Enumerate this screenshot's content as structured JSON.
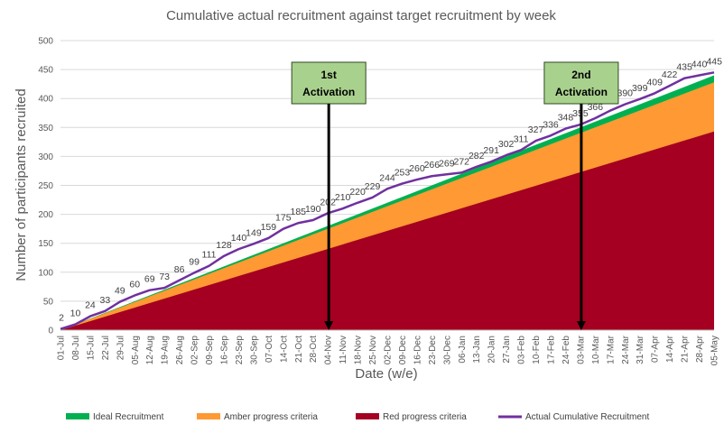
{
  "chart_data": {
    "type": "area",
    "title": "Cumulative actual recruitment against target recruitment by week",
    "xlabel": "Date (w/e)",
    "ylabel": "Number of participants recruited",
    "ylim": [
      0,
      500
    ],
    "yticks": [
      0,
      50,
      100,
      150,
      200,
      250,
      300,
      350,
      400,
      450,
      500
    ],
    "categories": [
      "01-Jul",
      "08-Jul",
      "15-Jul",
      "22-Jul",
      "29-Jul",
      "05-Aug",
      "12-Aug",
      "19-Aug",
      "26-Aug",
      "02-Sep",
      "09-Sep",
      "16-Sep",
      "23-Sep",
      "30-Sep",
      "07-Oct",
      "14-Oct",
      "21-Oct",
      "28-Oct",
      "04-Nov",
      "11-Nov",
      "18-Nov",
      "25-Nov",
      "02-Dec",
      "09-Dec",
      "16-Dec",
      "23-Dec",
      "30-Dec",
      "06-Jan",
      "13-Jan",
      "20-Jan",
      "27-Jan",
      "03-Feb",
      "10-Feb",
      "17-Feb",
      "24-Feb",
      "03-Mar",
      "10-Mar",
      "17-Mar",
      "24-Mar",
      "31-Mar",
      "07-Apr",
      "14-Apr",
      "21-Apr",
      "28-Apr",
      "05-May"
    ],
    "series": [
      {
        "name": "Ideal Recruitment",
        "color": "#00B050",
        "ideal_end": 440
      },
      {
        "name": "Amber progress criteria",
        "color": "#FF9933",
        "amber_end": 428
      },
      {
        "name": "Red progress criteria",
        "color": "#A50021",
        "red_end": 343
      },
      {
        "name": "Actual Cumulative Recruitment",
        "color": "#7030A0",
        "values": [
          2,
          10,
          24,
          33,
          49,
          60,
          69,
          73,
          86,
          99,
          111,
          128,
          140,
          149,
          159,
          175,
          185,
          190,
          202,
          210,
          220,
          229,
          244,
          253,
          260,
          266,
          269,
          272,
          282,
          291,
          302,
          311,
          327,
          336,
          348,
          355,
          366,
          379,
          390,
          399,
          409,
          422,
          435,
          440,
          445
        ]
      }
    ],
    "annotations": [
      {
        "label_line1": "1st",
        "label_line2": "Activation",
        "at": "04-Nov"
      },
      {
        "label_line1": "2nd",
        "label_line2": "Activation",
        "at": "03-Mar"
      }
    ],
    "grid": "horizontal",
    "legend": "bottom"
  }
}
